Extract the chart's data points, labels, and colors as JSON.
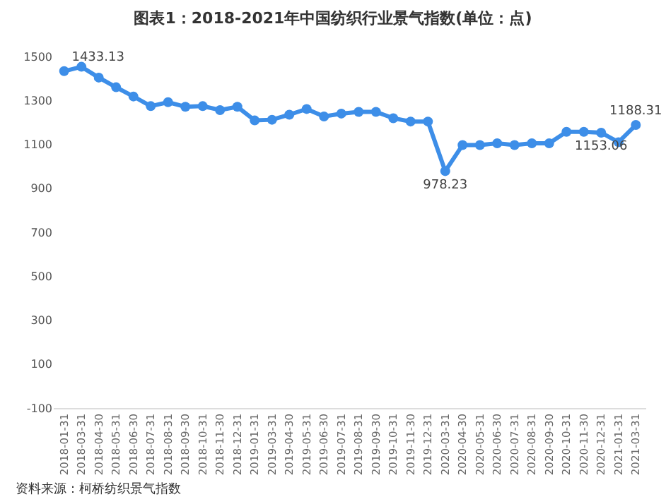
{
  "chart_data": {
    "type": "line",
    "title": "图表1：2018-2021年中国纺织行业景气指数(单位：点)",
    "categories": [
      "2018-01-31",
      "2018-03-31",
      "2018-04-30",
      "2018-05-31",
      "2018-06-30",
      "2018-07-31",
      "2018-08-31",
      "2018-09-30",
      "2018-10-31",
      "2018-11-30",
      "2018-12-31",
      "2019-01-31",
      "2019-03-31",
      "2019-04-30",
      "2019-05-31",
      "2019-06-30",
      "2019-07-31",
      "2019-08-31",
      "2019-09-30",
      "2019-10-31",
      "2019-11-30",
      "2019-12-31",
      "2020-03-31",
      "2020-04-30",
      "2020-05-31",
      "2020-06-30",
      "2020-07-31",
      "2020-08-31",
      "2020-09-30",
      "2020-10-31",
      "2020-11-30",
      "2020-12-31",
      "2021-01-31",
      "2021-03-31"
    ],
    "series": [
      {
        "color": "#3d8ee8",
        "values": [
          1433.13,
          1453,
          1404,
          1360,
          1318,
          1274,
          1292,
          1271,
          1274,
          1256,
          1271,
          1209,
          1212,
          1235,
          1261,
          1227,
          1240,
          1248,
          1248,
          1219,
          1204,
          1204,
          978.23,
          1097,
          1097,
          1105,
          1097,
          1105,
          1105,
          1157,
          1157,
          1153.06,
          1110,
          1188.31
        ],
        "value_labels": [
          "1433.13",
          null,
          null,
          null,
          null,
          null,
          null,
          null,
          null,
          null,
          null,
          null,
          null,
          null,
          null,
          null,
          null,
          null,
          null,
          null,
          null,
          null,
          "978.23",
          null,
          null,
          null,
          null,
          null,
          null,
          null,
          null,
          "1153.06",
          null,
          "1188.31"
        ]
      }
    ],
    "ylim": [
      -100,
      1500
    ],
    "yticks": [
      -100,
      100,
      300,
      500,
      700,
      900,
      1100,
      1300,
      1500
    ],
    "marker": "circle",
    "line_style": "solid",
    "annotations": [
      "资料来源：柯桥纺织景气指数"
    ]
  }
}
